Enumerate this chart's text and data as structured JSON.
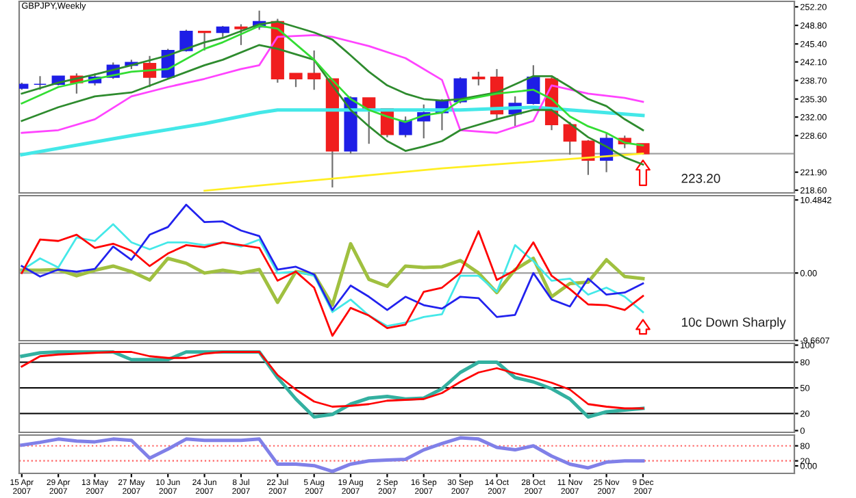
{
  "chart_data": [
    {
      "type": "candlestick",
      "title": "GBPJPY,Weekly",
      "x": [
        "2007-04-15",
        "2007-04-22",
        "2007-04-29",
        "2007-05-06",
        "2007-05-13",
        "2007-05-20",
        "2007-05-27",
        "2007-06-03",
        "2007-06-10",
        "2007-06-17",
        "2007-06-24",
        "2007-07-01",
        "2007-07-08",
        "2007-07-15",
        "2007-07-22",
        "2007-07-29",
        "2007-08-05",
        "2007-08-12",
        "2007-08-19",
        "2007-08-26",
        "2007-09-02",
        "2007-09-09",
        "2007-09-16",
        "2007-09-23",
        "2007-09-30",
        "2007-10-07",
        "2007-10-14",
        "2007-10-21",
        "2007-10-28",
        "2007-11-04",
        "2007-11-11",
        "2007-11-18",
        "2007-11-25",
        "2007-12-02",
        "2007-12-09"
      ],
      "ohlc": [
        [
          237.3,
          238.3,
          237.0,
          238.0
        ],
        [
          238.0,
          239.5,
          237.0,
          238.0
        ],
        [
          238.0,
          239.5,
          237.8,
          239.5
        ],
        [
          239.5,
          240.0,
          236.3,
          238.3
        ],
        [
          238.3,
          240.0,
          237.8,
          239.3
        ],
        [
          239.3,
          242.0,
          239.0,
          241.5
        ],
        [
          241.5,
          242.5,
          240.8,
          242.0
        ],
        [
          241.8,
          243.2,
          237.5,
          239.3
        ],
        [
          239.3,
          244.5,
          239.0,
          244.2
        ],
        [
          244.2,
          248.0,
          244.0,
          247.7
        ],
        [
          247.7,
          247.7,
          244.2,
          247.5
        ],
        [
          247.5,
          248.7,
          246.7,
          248.5
        ],
        [
          248.5,
          249.0,
          245.2,
          248.2
        ],
        [
          248.5,
          251.5,
          248.0,
          249.5
        ],
        [
          249.5,
          250.0,
          238.3,
          239.0
        ],
        [
          240.0,
          240.0,
          237.5,
          239.0
        ],
        [
          240.0,
          244.2,
          237.0,
          239.0
        ],
        [
          239.0,
          239.0,
          219.1,
          225.8
        ],
        [
          225.8,
          235.8,
          225.3,
          235.5
        ],
        [
          235.5,
          235.5,
          227.1,
          233.3
        ],
        [
          233.5,
          233.5,
          228.3,
          228.8
        ],
        [
          228.8,
          232.1,
          228.3,
          231.3
        ],
        [
          231.3,
          234.3,
          228.1,
          232.8
        ],
        [
          232.8,
          235.3,
          229.6,
          235.0
        ],
        [
          234.8,
          239.3,
          234.5,
          239.0
        ],
        [
          239.3,
          240.3,
          237.8,
          239.0
        ],
        [
          239.3,
          240.8,
          231.6,
          232.6
        ],
        [
          232.6,
          235.8,
          230.3,
          234.5
        ],
        [
          234.5,
          241.5,
          234.3,
          239.3
        ],
        [
          239.0,
          239.3,
          229.6,
          230.6
        ],
        [
          230.6,
          231.1,
          225.1,
          227.6
        ],
        [
          227.6,
          227.8,
          221.4,
          224.1
        ],
        [
          224.1,
          229.1,
          221.9,
          228.1
        ],
        [
          228.1,
          228.6,
          226.3,
          227.1
        ],
        [
          227.1,
          227.1,
          225.1,
          225.3
        ]
      ],
      "colors": [
        "#1e1ee6",
        "#1e1ee6",
        "#1e1ee6",
        "#f01e1e",
        "#1e1ee6",
        "#1e1ee6",
        "#1e1ee6",
        "#f01e1e",
        "#1e1ee6",
        "#1e1ee6",
        "#f01e1e",
        "#1e1ee6",
        "#f01e1e",
        "#1e1ee6",
        "#f01e1e",
        "#f01e1e",
        "#f01e1e",
        "#f01e1e",
        "#1e1ee6",
        "#f01e1e",
        "#f01e1e",
        "#1e1ee6",
        "#1e1ee6",
        "#1e1ee6",
        "#1e1ee6",
        "#f01e1e",
        "#f01e1e",
        "#1e1ee6",
        "#1e1ee6",
        "#f01e1e",
        "#f01e1e",
        "#f01e1e",
        "#1e1ee6",
        "#f01e1e",
        "#f01e1e"
      ],
      "series": [
        {
          "type": "line",
          "color": "#44e8e8",
          "x": [
            "2007-04-15",
            "2007-05-27",
            "2007-06-24",
            "2007-07-15",
            "2007-07-22",
            "2007-08-19",
            "2007-09-30",
            "2007-10-28",
            "2007-11-11",
            "2007-11-25",
            "2007-12-09"
          ],
          "values": [
            225.1,
            228.6,
            230.8,
            232.8,
            233.3,
            233.3,
            233.3,
            233.8,
            233.3,
            232.8,
            232.3
          ]
        },
        {
          "type": "line",
          "color": "#ff44ff",
          "x": [
            "2007-04-15",
            "2007-04-29",
            "2007-05-13",
            "2007-05-27",
            "2007-06-10",
            "2007-06-24",
            "2007-07-08",
            "2007-07-15",
            "2007-07-22",
            "2007-08-05",
            "2007-08-12",
            "2007-08-26",
            "2007-09-09",
            "2007-09-23",
            "2007-09-30",
            "2007-10-14",
            "2007-10-28",
            "2007-11-04",
            "2007-11-18",
            "2007-12-02",
            "2007-12-09"
          ],
          "values": [
            229.1,
            229.6,
            231.6,
            235.8,
            237.5,
            239.0,
            240.8,
            241.5,
            246.7,
            247.0,
            246.7,
            245.0,
            242.8,
            238.8,
            229.6,
            229.1,
            231.3,
            237.8,
            236.3,
            235.5,
            234.8
          ]
        },
        {
          "type": "line",
          "color": "#ffee22",
          "x": [
            "2007-06-24",
            "2007-08-05",
            "2007-09-23",
            "2007-12-09"
          ],
          "values": [
            218.5,
            220.4,
            222.6,
            225.3
          ]
        },
        {
          "type": "line",
          "color": "#2e8b2e",
          "x": [
            "2007-04-15",
            "2007-04-29",
            "2007-05-13",
            "2007-05-27",
            "2007-06-10",
            "2007-06-24",
            "2007-07-01",
            "2007-07-15",
            "2007-07-22",
            "2007-08-05",
            "2007-08-12",
            "2007-08-19",
            "2007-08-26",
            "2007-09-02",
            "2007-09-09",
            "2007-09-16",
            "2007-09-23",
            "2007-09-30",
            "2007-10-14",
            "2007-10-28",
            "2007-11-04",
            "2007-11-11",
            "2007-11-18",
            "2007-11-25",
            "2007-12-02",
            "2007-12-09"
          ],
          "values": [
            236.3,
            238.3,
            239.8,
            241.5,
            243.3,
            245.7,
            246.5,
            249.0,
            249.5,
            247.5,
            246.2,
            243.3,
            240.3,
            237.8,
            236.3,
            235.3,
            235.0,
            235.3,
            236.5,
            239.5,
            239.5,
            237.5,
            235.3,
            234.0,
            231.6,
            229.6
          ]
        },
        {
          "type": "line",
          "color": "#2e8b2e",
          "x": [
            "2007-04-15",
            "2007-04-29",
            "2007-05-13",
            "2007-05-27",
            "2007-06-10",
            "2007-06-24",
            "2007-07-01",
            "2007-07-15",
            "2007-07-22",
            "2007-08-05",
            "2007-08-12",
            "2007-08-19",
            "2007-08-26",
            "2007-09-02",
            "2007-09-09",
            "2007-09-16",
            "2007-09-23",
            "2007-09-30",
            "2007-10-14",
            "2007-10-28",
            "2007-11-04",
            "2007-11-11",
            "2007-11-18",
            "2007-11-25",
            "2007-12-02",
            "2007-12-09"
          ],
          "values": [
            231.3,
            233.8,
            235.8,
            236.5,
            239.0,
            241.5,
            242.5,
            245.2,
            244.5,
            242.5,
            237.8,
            233.3,
            230.3,
            227.6,
            225.8,
            226.6,
            227.6,
            229.6,
            231.6,
            233.3,
            233.3,
            230.8,
            228.3,
            226.6,
            224.6,
            223.3
          ]
        },
        {
          "type": "line",
          "color": "#33dd33",
          "x": [
            "2007-04-15",
            "2007-04-29",
            "2007-05-13",
            "2007-05-27",
            "2007-06-10",
            "2007-06-24",
            "2007-07-01",
            "2007-07-15",
            "2007-07-22",
            "2007-08-05",
            "2007-08-12",
            "2007-08-19",
            "2007-08-26",
            "2007-09-02",
            "2007-09-09",
            "2007-09-16",
            "2007-09-23",
            "2007-09-30",
            "2007-10-14",
            "2007-10-28",
            "2007-11-04",
            "2007-11-11",
            "2007-11-18",
            "2007-11-25",
            "2007-12-02",
            "2007-12-09"
          ],
          "values": [
            234.5,
            237.5,
            239.0,
            240.3,
            240.8,
            244.5,
            245.7,
            248.7,
            248.2,
            242.5,
            238.8,
            235.3,
            233.3,
            232.1,
            231.1,
            232.3,
            232.8,
            235.0,
            236.3,
            237.0,
            235.3,
            232.1,
            230.3,
            229.1,
            227.3,
            226.8
          ]
        }
      ],
      "xlim": [
        "2007-04-14",
        "2008-02-05"
      ],
      "ylim": [
        218.1,
        253.2
      ],
      "yticks": [
        {
          "value": 252.2,
          "label": "252.20"
        },
        {
          "value": 248.8,
          "label": "248.80"
        },
        {
          "value": 245.4,
          "label": "245.40"
        },
        {
          "value": 242.1,
          "label": "242.10"
        },
        {
          "value": 238.7,
          "label": "238.70"
        },
        {
          "value": 235.3,
          "label": "235.30"
        },
        {
          "value": 232.0,
          "label": "232.00"
        },
        {
          "value": 228.6,
          "label": "228.60"
        },
        {
          "value": 221.9,
          "label": "221.90"
        },
        {
          "value": 218.6,
          "label": "218.60"
        }
      ],
      "tick_labels": "y",
      "ref_lines": [
        {
          "axis": "y",
          "value": 225.3,
          "color": "#a0a0a0"
        }
      ],
      "annotations": [
        "223.20"
      ]
    },
    {
      "type": "line",
      "x": [
        "2007-04-15",
        "2007-04-22",
        "2007-04-29",
        "2007-05-06",
        "2007-05-13",
        "2007-05-20",
        "2007-05-27",
        "2007-06-03",
        "2007-06-10",
        "2007-06-17",
        "2007-06-24",
        "2007-07-01",
        "2007-07-08",
        "2007-07-15",
        "2007-07-22",
        "2007-07-29",
        "2007-08-05",
        "2007-08-12",
        "2007-08-19",
        "2007-08-26",
        "2007-09-02",
        "2007-09-09",
        "2007-09-16",
        "2007-09-23",
        "2007-09-30",
        "2007-10-07",
        "2007-10-14",
        "2007-10-21",
        "2007-10-28",
        "2007-11-04",
        "2007-11-11",
        "2007-11-18",
        "2007-11-25",
        "2007-12-02",
        "2007-12-09"
      ],
      "series": [
        {
          "color": "#a0c040",
          "values": [
            0.4,
            0.4,
            0.5,
            -0.4,
            0.4,
            1.0,
            0.2,
            -1.0,
            2.1,
            1.4,
            0,
            0.4,
            0,
            0.5,
            -4.2,
            0.2,
            -0.2,
            -4.6,
            4.2,
            -0.9,
            -1.9,
            1.0,
            0.8,
            0.9,
            1.8,
            0,
            -2.8,
            0.5,
            2.1,
            -3.4,
            -1.5,
            -1.3,
            1.9,
            -0.5,
            -0.8
          ]
        },
        {
          "color": "#44e8e8",
          "values": [
            0.4,
            2.1,
            0.8,
            5.1,
            4.6,
            7.0,
            4.4,
            3.4,
            4.4,
            4.4,
            4.0,
            4.4,
            3.8,
            4.8,
            0,
            0.2,
            -0.4,
            -5.6,
            -3.8,
            -6.1,
            -7.6,
            -7.1,
            -6.3,
            -5.9,
            -0.4,
            -0.4,
            -2.7,
            4.0,
            1.7,
            -1.1,
            -0.8,
            -3.1,
            -2.1,
            -3.4,
            -5.6
          ]
        },
        {
          "color": "#2222ee",
          "values": [
            1.0,
            -0.5,
            0.5,
            0.2,
            0.6,
            3.8,
            1.9,
            5.5,
            6.6,
            9.8,
            7.3,
            7.4,
            6.1,
            5.3,
            0.5,
            0.9,
            -0.2,
            -5.3,
            -1.8,
            -3.4,
            -5.3,
            -3.4,
            -4.6,
            -5.1,
            -3.4,
            -3.6,
            -6.3,
            -6.0,
            0,
            -3.8,
            -4.8,
            -0.8,
            -3.1,
            -2.8,
            -1.5
          ]
        },
        {
          "color": "#ff0000",
          "values": [
            0,
            4.8,
            4.6,
            5.5,
            3.6,
            4.2,
            3.2,
            1.0,
            2.8,
            4.0,
            3.7,
            4.4,
            4.0,
            3.6,
            -1.1,
            0.2,
            -2.1,
            -9.0,
            -5.0,
            -6.1,
            -7.9,
            -7.4,
            -2.7,
            -2.1,
            0,
            6.0,
            -1.0,
            0.4,
            4.4,
            -0.4,
            -2.3,
            -4.5,
            -4.6,
            -5.3,
            -3.3
          ]
        }
      ],
      "xlim": [
        "2007-04-14",
        "2008-02-05"
      ],
      "ylim": [
        -9.7,
        11.1
      ],
      "yticks": [
        {
          "value": 10.4842,
          "label": "10.4842"
        },
        {
          "value": 0,
          "label": "0.00"
        },
        {
          "value": -9.6607,
          "label": "-9.6607"
        }
      ],
      "tick_labels": "y",
      "ref_lines": [
        {
          "axis": "y",
          "value": 0,
          "color": "#a0a0a0"
        }
      ],
      "annotations": [
        "10c Down Sharply"
      ]
    },
    {
      "type": "line",
      "x": [
        "2007-04-15",
        "2007-04-22",
        "2007-04-29",
        "2007-05-06",
        "2007-05-13",
        "2007-05-20",
        "2007-05-27",
        "2007-06-03",
        "2007-06-10",
        "2007-06-17",
        "2007-06-24",
        "2007-07-01",
        "2007-07-08",
        "2007-07-15",
        "2007-07-22",
        "2007-07-29",
        "2007-08-05",
        "2007-08-12",
        "2007-08-19",
        "2007-08-26",
        "2007-09-02",
        "2007-09-09",
        "2007-09-16",
        "2007-09-23",
        "2007-09-30",
        "2007-10-07",
        "2007-10-14",
        "2007-10-21",
        "2007-10-28",
        "2007-11-04",
        "2007-11-11",
        "2007-11-18",
        "2007-11-25",
        "2007-12-02",
        "2007-12-09"
      ],
      "series": [
        {
          "color": "#33b0a0",
          "values": [
            87,
            91,
            92,
            92,
            92,
            92,
            83,
            83,
            83,
            92,
            92,
            92,
            92,
            92,
            62,
            37,
            16,
            19,
            31,
            38,
            40,
            37,
            38,
            49,
            68,
            80,
            80,
            62,
            57,
            49,
            37,
            16,
            22,
            24,
            26
          ]
        },
        {
          "color": "#ff0000",
          "values": [
            75,
            87,
            89,
            90,
            91,
            92,
            92,
            87,
            85,
            85,
            90,
            92,
            92,
            92,
            65,
            48,
            34,
            28,
            29,
            31,
            35,
            36,
            37,
            44,
            57,
            68,
            73,
            67,
            62,
            56,
            48,
            31,
            28,
            26,
            26
          ]
        }
      ],
      "xlim": [
        "2007-04-14",
        "2008-02-05"
      ],
      "ylim": [
        -2,
        102
      ],
      "yticks": [
        100,
        80,
        50,
        20,
        0
      ],
      "tick_labels": "y",
      "ref_lines": [
        {
          "axis": "y",
          "value": 80,
          "color": "#000000"
        },
        {
          "axis": "y",
          "value": 50,
          "color": "#000000"
        },
        {
          "axis": "y",
          "value": 20,
          "color": "#000000"
        }
      ]
    },
    {
      "type": "line",
      "x": [
        "2007-04-15",
        "2007-04-22",
        "2007-04-29",
        "2007-05-06",
        "2007-05-13",
        "2007-05-20",
        "2007-05-27",
        "2007-06-03",
        "2007-06-10",
        "2007-06-17",
        "2007-06-24",
        "2007-07-01",
        "2007-07-08",
        "2007-07-15",
        "2007-07-22",
        "2007-07-29",
        "2007-08-05",
        "2007-08-12",
        "2007-08-19",
        "2007-08-26",
        "2007-09-02",
        "2007-09-09",
        "2007-09-16",
        "2007-09-23",
        "2007-09-30",
        "2007-10-07",
        "2007-10-14",
        "2007-10-21",
        "2007-10-28",
        "2007-11-04",
        "2007-11-11",
        "2007-11-18",
        "2007-11-25",
        "2007-12-02",
        "2007-12-09"
      ],
      "series": [
        {
          "color": "#8080e8",
          "values": [
            83,
            94,
            107,
            99,
            96,
            107,
            102,
            31,
            67,
            107,
            102,
            102,
            102,
            107,
            7,
            7,
            1,
            -22,
            7,
            20,
            23,
            26,
            64,
            89,
            112,
            107,
            74,
            64,
            80,
            39,
            7,
            -8,
            15,
            20,
            20
          ]
        }
      ],
      "xlim": [
        "2007-04-14",
        "2008-02-05"
      ],
      "ylim": [
        -30,
        123
      ],
      "xticks": [
        {
          "value": "2007-04-15",
          "label": "15 Apr 2007"
        },
        {
          "value": "2007-04-29",
          "label": "29 Apr 2007"
        },
        {
          "value": "2007-05-13",
          "label": "13 May 2007"
        },
        {
          "value": "2007-05-27",
          "label": "27 May 2007"
        },
        {
          "value": "2007-06-10",
          "label": "10 Jun 2007"
        },
        {
          "value": "2007-06-24",
          "label": "24 Jun 2007"
        },
        {
          "value": "2007-07-08",
          "label": "8 Jul 2007"
        },
        {
          "value": "2007-07-22",
          "label": "22 Jul 2007"
        },
        {
          "value": "2007-08-05",
          "label": "5 Aug 2007"
        },
        {
          "value": "2007-08-19",
          "label": "19 Aug 2007"
        },
        {
          "value": "2007-09-02",
          "label": "2 Sep 2007"
        },
        {
          "value": "2007-09-16",
          "label": "16 Sep 2007"
        },
        {
          "value": "2007-09-30",
          "label": "30 Sep 2007"
        },
        {
          "value": "2007-10-14",
          "label": "14 Oct 2007"
        },
        {
          "value": "2007-10-28",
          "label": "28 Oct 2007"
        },
        {
          "value": "2007-11-11",
          "label": "11 Nov 2007"
        },
        {
          "value": "2007-11-25",
          "label": "25 Nov 2007"
        },
        {
          "value": "2007-12-09",
          "label": "9 Dec 2007"
        }
      ],
      "yticks": [
        80,
        20,
        {
          "value": 0,
          "label": "0.00"
        }
      ],
      "ref_lines": [
        {
          "axis": "y",
          "value": 80,
          "color": "#ff6060",
          "line_style": "dotted"
        },
        {
          "axis": "y",
          "value": 20,
          "color": "#ff6060",
          "line_style": "dotted"
        }
      ]
    }
  ]
}
